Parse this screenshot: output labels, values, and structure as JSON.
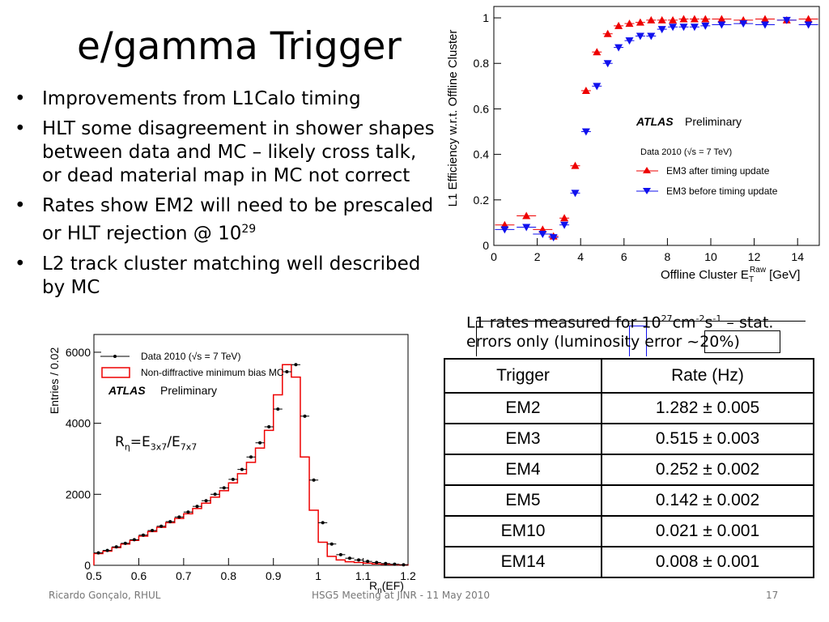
{
  "slide": {
    "title": "e/gamma Trigger",
    "bullets": [
      {
        "text": "Improvements from L1Calo timing"
      },
      {
        "text": "HLT some disagreement in shower shapes between data and MC – likely cross talk, or dead material map in MC not correct"
      },
      {
        "text": "Rates show EM2 will need to be prescaled or HLT rejection @ 10",
        "sup": "29"
      },
      {
        "text": "L2 track cluster matching well described by MC"
      }
    ],
    "caption": {
      "pre": "L1 rates measured for 10",
      "sup1": "27",
      "mid1": "cm",
      "sup2": "-2",
      "mid2": "s",
      "sup3": "-1",
      "post": " – stat. errors only (luminosity error ~20%)"
    },
    "rlabel": {
      "r": "R",
      "r_sub": "η",
      "eq": "=E",
      "e1_sub": "3x7",
      "slash": "/E",
      "e2_sub": "7x7"
    },
    "footer": {
      "author": "Ricardo Gonçalo, RHUL",
      "meeting": "HSG5 Meeting at JINR - 11 May 2010",
      "page": "17"
    }
  },
  "rate_table": {
    "headers": [
      "Trigger",
      "Rate (Hz)"
    ],
    "rows": [
      {
        "trigger": "EM2",
        "rate": "1.282 ± 0.005"
      },
      {
        "trigger": "EM3",
        "rate": "0.515 ± 0.003"
      },
      {
        "trigger": "EM4",
        "rate": "0.252 ± 0.002"
      },
      {
        "trigger": "EM5",
        "rate": "0.142 ± 0.002"
      },
      {
        "trigger": "EM10",
        "rate": "0.021 ± 0.001"
      },
      {
        "trigger": "EM14",
        "rate": "0.008 ± 0.001"
      }
    ]
  },
  "chart_data": [
    {
      "type": "scatter",
      "title": "",
      "xlabel": "Offline Cluster E",
      "xlabel_sub": "T",
      "xlabel_sup": "Raw",
      "xlabel_unit": "[GeV]",
      "ylabel": "L1 Efficiency w.r.t. Offline Cluster",
      "xlim": [
        0,
        15
      ],
      "ylim": [
        0,
        1.05
      ],
      "xticks": [
        0,
        2,
        4,
        6,
        8,
        10,
        12,
        14
      ],
      "yticks": [
        0,
        0.2,
        0.4,
        0.6,
        0.8,
        1
      ],
      "annotations": [
        "ATLAS Preliminary",
        "Data 2010 (√s = 7 TeV)"
      ],
      "atlas": "ATLAS",
      "preliminary": "Preliminary",
      "data_label": "Data 2010 (√s = 7 TeV)",
      "legend": "center-right",
      "series": [
        {
          "name": "EM3 after timing update",
          "color": "#ee0000",
          "marker": "triangle-up",
          "x": [
            0.5,
            1.5,
            2.25,
            2.75,
            3.25,
            3.75,
            4.25,
            4.75,
            5.25,
            5.75,
            6.25,
            6.75,
            7.25,
            7.75,
            8.25,
            8.75,
            9.25,
            9.75,
            10.5,
            11.5,
            12.5,
            13.5,
            14.5
          ],
          "y": [
            0.09,
            0.13,
            0.07,
            0.04,
            0.12,
            0.35,
            0.68,
            0.85,
            0.93,
            0.965,
            0.975,
            0.98,
            0.99,
            0.99,
            0.99,
            0.995,
            0.995,
            0.995,
            0.995,
            0.99,
            0.995,
            0.99,
            0.995
          ]
        },
        {
          "name": "EM3 before timing update",
          "color": "#1111ee",
          "marker": "triangle-down",
          "x": [
            0.5,
            1.5,
            2.25,
            2.75,
            3.25,
            3.75,
            4.25,
            4.75,
            5.25,
            5.75,
            6.25,
            6.75,
            7.25,
            7.75,
            8.25,
            8.75,
            9.25,
            9.75,
            10.5,
            11.5,
            12.5,
            13.5,
            14.5
          ],
          "y": [
            0.07,
            0.08,
            0.05,
            0.035,
            0.09,
            0.23,
            0.5,
            0.7,
            0.8,
            0.87,
            0.9,
            0.92,
            0.92,
            0.95,
            0.96,
            0.96,
            0.96,
            0.965,
            0.97,
            0.975,
            0.97,
            0.99,
            0.97
          ]
        }
      ]
    },
    {
      "type": "bar",
      "title": "",
      "xlabel": "R",
      "xlabel_sub": "η",
      "xlabel_unit": "(EF)",
      "ylabel": "Entries / 0.02",
      "xlim": [
        0.5,
        1.2
      ],
      "ylim": [
        0,
        6500
      ],
      "xticks": [
        0.5,
        0.6,
        0.7,
        0.8,
        0.9,
        1,
        1.1,
        1.2
      ],
      "yticks": [
        0,
        2000,
        4000,
        6000
      ],
      "annotations": [
        "ATLAS Preliminary"
      ],
      "atlas": "ATLAS",
      "preliminary": "Preliminary",
      "legend": "top-left",
      "series": [
        {
          "name": "Data 2010 (√s = 7 TeV)",
          "color": "#000000",
          "marker": "dot",
          "x": [
            0.51,
            0.53,
            0.55,
            0.57,
            0.59,
            0.61,
            0.63,
            0.65,
            0.67,
            0.69,
            0.71,
            0.73,
            0.75,
            0.77,
            0.79,
            0.81,
            0.83,
            0.85,
            0.87,
            0.89,
            0.91,
            0.93,
            0.95,
            0.97,
            0.99,
            1.01,
            1.03,
            1.05,
            1.07,
            1.09,
            1.11,
            1.13,
            1.15,
            1.17,
            1.19
          ],
          "y": [
            350,
            420,
            520,
            620,
            720,
            850,
            980,
            1100,
            1230,
            1360,
            1500,
            1660,
            1820,
            2000,
            2180,
            2420,
            2700,
            3050,
            3450,
            3900,
            4400,
            5450,
            5650,
            4200,
            2400,
            1200,
            600,
            300,
            200,
            150,
            110,
            80,
            50,
            30,
            15
          ]
        },
        {
          "name": "Non-diffractive minimum bias MC",
          "color": "#ee0000",
          "marker": "step",
          "x": [
            0.51,
            0.53,
            0.55,
            0.57,
            0.59,
            0.61,
            0.63,
            0.65,
            0.67,
            0.69,
            0.71,
            0.73,
            0.75,
            0.77,
            0.79,
            0.81,
            0.83,
            0.85,
            0.87,
            0.89,
            0.91,
            0.93,
            0.95,
            0.97,
            0.99,
            1.01,
            1.03,
            1.05,
            1.07,
            1.09,
            1.11,
            1.13,
            1.15,
            1.17,
            1.19
          ],
          "y": [
            330,
            400,
            500,
            600,
            700,
            820,
            950,
            1070,
            1200,
            1320,
            1450,
            1600,
            1750,
            1920,
            2100,
            2320,
            2580,
            2900,
            3300,
            3800,
            4800,
            5650,
            5300,
            3050,
            1550,
            650,
            250,
            150,
            100,
            80,
            60,
            40,
            30,
            20,
            10
          ]
        }
      ]
    }
  ]
}
